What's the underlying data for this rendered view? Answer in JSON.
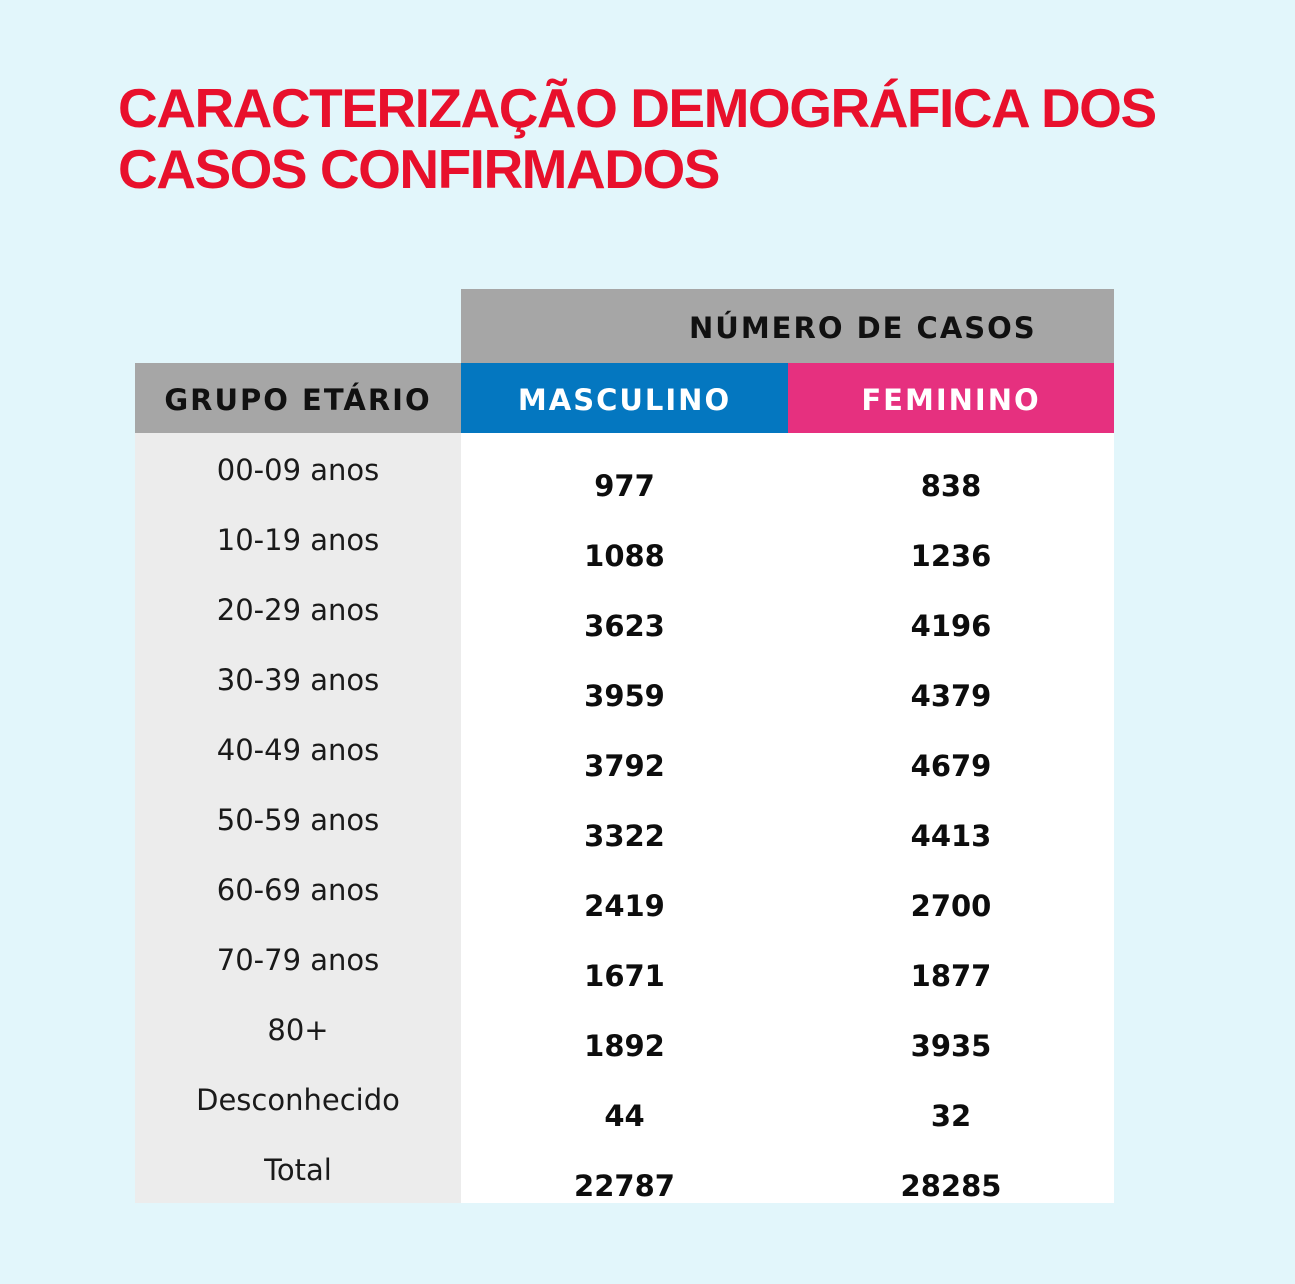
{
  "title": {
    "line1": "CARACTERIZAÇÃO DEMOGRÁFICA DOS",
    "line2": "CASOS CONFIRMADOS"
  },
  "colors": {
    "title": "#e8102c",
    "background": "#e2f6fb",
    "header_gray": "#a6a6a6",
    "masculino": "#0477c0",
    "feminino": "#e6307f",
    "age_column": "#ececec"
  },
  "table": {
    "super_header": "NÚMERO DE CASOS",
    "headers": {
      "age_group": "GRUPO ETÁRIO",
      "masculino": "MASCULINO",
      "feminino": "FEMININO"
    },
    "rows": [
      {
        "age": "00-09 anos",
        "masculino": "977",
        "feminino": "838"
      },
      {
        "age": "10-19 anos",
        "masculino": "1088",
        "feminino": "1236"
      },
      {
        "age": "20-29 anos",
        "masculino": "3623",
        "feminino": "4196"
      },
      {
        "age": "30-39 anos",
        "masculino": "3959",
        "feminino": "4379"
      },
      {
        "age": "40-49 anos",
        "masculino": "3792",
        "feminino": "4679"
      },
      {
        "age": "50-59 anos",
        "masculino": "3322",
        "feminino": "4413"
      },
      {
        "age": "60-69 anos",
        "masculino": "2419",
        "feminino": "2700"
      },
      {
        "age": "70-79 anos",
        "masculino": "1671",
        "feminino": "1877"
      },
      {
        "age": "80+",
        "masculino": "1892",
        "feminino": "3935"
      },
      {
        "age": "Desconhecido",
        "masculino": "44",
        "feminino": "32"
      },
      {
        "age": "Total",
        "masculino": "22787",
        "feminino": "28285"
      }
    ]
  }
}
